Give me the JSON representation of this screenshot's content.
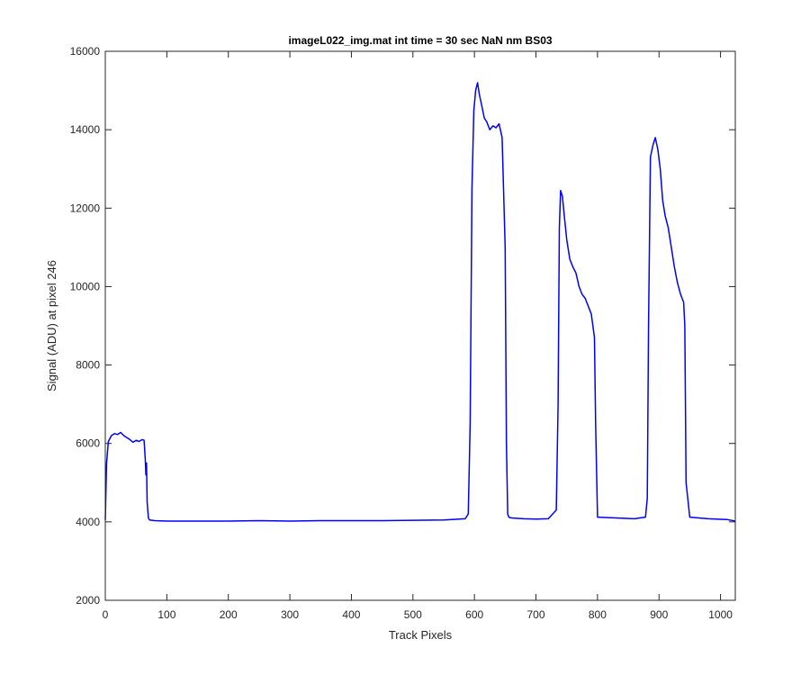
{
  "chart_data": {
    "type": "line",
    "title": "imageL022_img.mat int time = 30 sec  NaN nm BS03",
    "xlabel": "Track Pixels",
    "ylabel": "Signal (ADU) at pixel 246",
    "xlim": [
      0,
      1024
    ],
    "ylim": [
      2000,
      16000
    ],
    "xticks": [
      0,
      100,
      200,
      300,
      400,
      500,
      600,
      700,
      800,
      900,
      1000
    ],
    "yticks": [
      2000,
      4000,
      6000,
      8000,
      10000,
      12000,
      14000,
      16000
    ],
    "xtick_labels": [
      "0",
      "100",
      "200",
      "300",
      "400",
      "500",
      "600",
      "700",
      "800",
      "900",
      "1000"
    ],
    "ytick_labels": [
      "2000",
      "4000",
      "6000",
      "8000",
      "10000",
      "12000",
      "14000",
      "16000"
    ],
    "grid": false,
    "line_color": "#0000ff",
    "series": [
      {
        "x": [
          0,
          2,
          5,
          10,
          15,
          20,
          25,
          30,
          35,
          40,
          45,
          50,
          55,
          60,
          63,
          65,
          66,
          67,
          68,
          70,
          72,
          80,
          100,
          150,
          200,
          250,
          300,
          350,
          400,
          450,
          500,
          550,
          585,
          590,
          593,
          596,
          599,
          602,
          605,
          608,
          612,
          616,
          620,
          625,
          630,
          635,
          640,
          645,
          650,
          652,
          654,
          656,
          660,
          680,
          700,
          720,
          733,
          736,
          738,
          740,
          743,
          746,
          750,
          755,
          760,
          765,
          770,
          775,
          780,
          785,
          790,
          795,
          797,
          800,
          830,
          860,
          878,
          881,
          883,
          886,
          890,
          894,
          898,
          902,
          906,
          910,
          915,
          920,
          925,
          930,
          935,
          940,
          942,
          944,
          950,
          980,
          1010,
          1024
        ],
        "y": [
          4050,
          5500,
          6050,
          6200,
          6250,
          6230,
          6280,
          6200,
          6150,
          6100,
          6030,
          6080,
          6050,
          6100,
          6080,
          5600,
          5200,
          5500,
          4500,
          4100,
          4050,
          4030,
          4020,
          4020,
          4020,
          4030,
          4020,
          4030,
          4030,
          4030,
          4040,
          4050,
          4080,
          4200,
          6500,
          12500,
          14500,
          15000,
          15200,
          14900,
          14600,
          14300,
          14200,
          14000,
          14100,
          14050,
          14150,
          13800,
          11000,
          6000,
          4200,
          4120,
          4100,
          4080,
          4070,
          4080,
          4300,
          7000,
          11500,
          12450,
          12300,
          11800,
          11200,
          10700,
          10500,
          10350,
          10000,
          9800,
          9700,
          9500,
          9300,
          8700,
          6500,
          4120,
          4100,
          4080,
          4120,
          4600,
          9000,
          13300,
          13600,
          13800,
          13500,
          13000,
          12200,
          11800,
          11500,
          11000,
          10500,
          10100,
          9800,
          9600,
          9000,
          5000,
          4120,
          4080,
          4060,
          4020
        ]
      }
    ]
  }
}
